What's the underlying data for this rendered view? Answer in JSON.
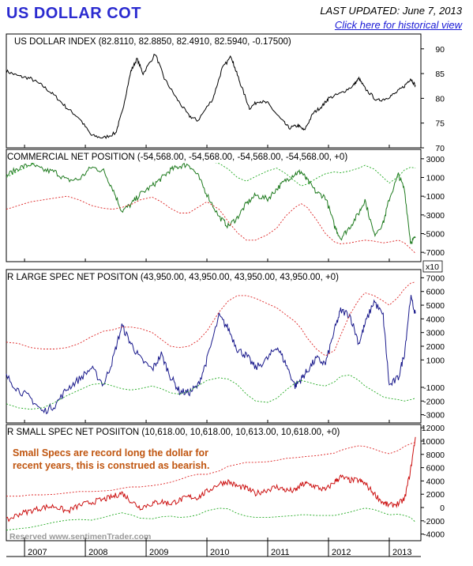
{
  "header": {
    "title": "US DOLLAR COT",
    "last_updated": "LAST UPDATED:  June 7, 2013",
    "historical_link": "Click here for historical view"
  },
  "footer": {
    "watermark": "Reserved   www.sentimenTrader.com"
  },
  "colors": {
    "index_line": "#000000",
    "commercial_line": "#1e7a1e",
    "large_spec_line": "#1a1a8c",
    "small_spec_line": "#cc1111",
    "upper_band": "#dd2222",
    "lower_band": "#22aa22",
    "title_blue": "#2b2bd0",
    "annotation": "#c0550f"
  },
  "chart_data": [
    {
      "type": "line",
      "title": "US DOLLAR INDEX (82.8110, 82.8850, 82.4910, 82.5940, -0.17500)",
      "ylim": [
        70,
        93
      ],
      "yticks": [
        "90",
        "85",
        "80",
        "75",
        "70"
      ],
      "ytick_values": [
        90,
        85,
        80,
        75,
        70
      ],
      "x": [
        2006.7,
        2006.9,
        2007.1,
        2007.3,
        2007.5,
        2007.7,
        2007.9,
        2008.1,
        2008.3,
        2008.5,
        2008.6,
        2008.75,
        2008.85,
        2008.95,
        2009.15,
        2009.3,
        2009.5,
        2009.7,
        2009.85,
        2010.1,
        2010.25,
        2010.4,
        2010.45,
        2010.55,
        2010.7,
        2010.85,
        2011.0,
        2011.2,
        2011.35,
        2011.5,
        2011.6,
        2011.75,
        2011.9,
        2012.0,
        2012.2,
        2012.4,
        2012.5,
        2012.6,
        2012.8,
        2012.95,
        2013.1,
        2013.25,
        2013.35,
        2013.43
      ],
      "series": [
        {
          "name": "",
          "values": [
            85.5,
            84.5,
            84.0,
            82.5,
            80.5,
            78.0,
            76.0,
            72.5,
            72.0,
            73.0,
            77.0,
            85.5,
            88.0,
            85.0,
            89.0,
            84.0,
            80.0,
            76.5,
            75.5,
            80.0,
            86.0,
            88.5,
            86.5,
            83.0,
            78.0,
            79.5,
            79.0,
            76.0,
            74.0,
            74.5,
            73.5,
            77.0,
            78.5,
            80.0,
            81.0,
            82.5,
            84.0,
            82.0,
            79.5,
            80.0,
            81.0,
            82.5,
            84.0,
            82.6
          ]
        }
      ]
    },
    {
      "type": "line",
      "title": "COMMERCIAL NET POSITION (-54,568.00, -54,568.00, -54,568.00, -54,568.00, +0)",
      "ylim": [
        -8000,
        4000
      ],
      "yticks": [
        "3000",
        "1000",
        "-1000",
        "-3000",
        "-5000",
        "-7000"
      ],
      "ytick_values": [
        3000,
        1000,
        -1000,
        -3000,
        -5000,
        -7000
      ],
      "unit_label": "x10",
      "x": [
        2006.7,
        2006.9,
        2007.1,
        2007.3,
        2007.5,
        2007.7,
        2007.9,
        2008.1,
        2008.3,
        2008.45,
        2008.6,
        2008.75,
        2008.9,
        2009.1,
        2009.25,
        2009.4,
        2009.55,
        2009.7,
        2009.85,
        2010.0,
        2010.2,
        2010.35,
        2010.5,
        2010.65,
        2010.8,
        2011.0,
        2011.15,
        2011.3,
        2011.45,
        2011.55,
        2011.65,
        2011.8,
        2011.95,
        2012.1,
        2012.2,
        2012.35,
        2012.5,
        2012.6,
        2012.75,
        2012.9,
        2013.0,
        2013.15,
        2013.25,
        2013.35,
        2013.43
      ],
      "series": [
        {
          "name": "",
          "values": [
            1200,
            2000,
            2400,
            1800,
            1600,
            700,
            800,
            2100,
            1700,
            -200,
            -2600,
            -1900,
            -800,
            100,
            900,
            1800,
            2200,
            2400,
            1200,
            -800,
            -3200,
            -4200,
            -3300,
            -1800,
            -900,
            -1300,
            -200,
            700,
            1400,
            1600,
            700,
            -600,
            -1100,
            -4200,
            -5500,
            -4300,
            -2800,
            -1400,
            -5100,
            -3900,
            -1300,
            1300,
            -300,
            -5900,
            -5457
          ]
        },
        {
          "name": "",
          "values": [
            -2400,
            -2000,
            -1600,
            -1400,
            -1200,
            -1000,
            -1400,
            -2000,
            -2300,
            -2400,
            -2200,
            -1900,
            -1400,
            -1100,
            -1600,
            -2300,
            -2800,
            -2800,
            -2200,
            -1600,
            -2400,
            -3700,
            -4900,
            -5700,
            -5700,
            -5100,
            -4400,
            -3100,
            -2200,
            -1800,
            -2200,
            -3500,
            -5000,
            -5900,
            -6100,
            -6000,
            -5800,
            -5700,
            -5800,
            -6000,
            -5900,
            -5700,
            -6000,
            -6600,
            -7100
          ]
        },
        {
          "name": "",
          "values": [
            1000,
            1700,
            2300,
            3100,
            3200,
            3300,
            3200,
            3100,
            3100,
            3200,
            3300,
            3300,
            3200,
            3100,
            3200,
            3300,
            3300,
            3200,
            3000,
            2800,
            2500,
            1900,
            1000,
            600,
            1100,
            1700,
            2000,
            1400,
            600,
            100,
            300,
            900,
            1400,
            1600,
            1500,
            1700,
            2000,
            2300,
            1900,
            1000,
            400,
            1100,
            1800,
            2100,
            2000
          ]
        }
      ]
    },
    {
      "type": "line",
      "title": "R LARGE SPEC NET POSITON (43,950.00, 43,950.00, 43,950.00, 43,950.00, +0)",
      "ylim": [
        -3600,
        7600
      ],
      "yticks": [
        "7000",
        "6000",
        "5000",
        "4000",
        "3000",
        "2000",
        "1000",
        "-1000",
        "-2000",
        "-3000"
      ],
      "ytick_values": [
        7000,
        6000,
        5000,
        4000,
        3000,
        2000,
        1000,
        -1000,
        -2000,
        -3000
      ],
      "x": [
        2006.7,
        2006.9,
        2007.1,
        2007.3,
        2007.5,
        2007.7,
        2007.9,
        2008.1,
        2008.3,
        2008.45,
        2008.6,
        2008.75,
        2008.9,
        2009.1,
        2009.25,
        2009.4,
        2009.55,
        2009.7,
        2009.85,
        2010.0,
        2010.2,
        2010.35,
        2010.5,
        2010.65,
        2010.8,
        2011.0,
        2011.15,
        2011.3,
        2011.45,
        2011.55,
        2011.65,
        2011.8,
        2011.95,
        2012.1,
        2012.2,
        2012.35,
        2012.5,
        2012.6,
        2012.75,
        2012.9,
        2013.0,
        2013.15,
        2013.25,
        2013.35,
        2013.43
      ],
      "series": [
        {
          "name": "",
          "values": [
            -200,
            -1200,
            -1800,
            -2800,
            -2300,
            -1100,
            -400,
            400,
            -800,
            1000,
            3500,
            2200,
            1100,
            300,
            1400,
            -200,
            -1300,
            -1400,
            -900,
            1000,
            4200,
            3300,
            1800,
            1300,
            400,
            1100,
            2000,
            700,
            -900,
            -400,
            200,
            1100,
            700,
            3200,
            4600,
            4300,
            2200,
            3600,
            5300,
            4200,
            -900,
            -300,
            1500,
            5600,
            4395
          ]
        },
        {
          "name": "",
          "values": [
            2300,
            2200,
            1900,
            1800,
            1800,
            1900,
            2200,
            2700,
            3100,
            3200,
            3400,
            3400,
            3300,
            3000,
            2500,
            2000,
            1900,
            2000,
            2400,
            3100,
            4500,
            5300,
            5700,
            5700,
            5500,
            5100,
            4800,
            4300,
            3800,
            3300,
            2600,
            1800,
            1300,
            1700,
            2800,
            4300,
            5400,
            5900,
            5700,
            5300,
            5000,
            5600,
            6200,
            6600,
            6700
          ]
        },
        {
          "name": "",
          "values": [
            -2200,
            -2500,
            -2600,
            -2500,
            -2100,
            -1600,
            -1200,
            -800,
            -700,
            -900,
            -1100,
            -1200,
            -1100,
            -900,
            -1100,
            -1400,
            -1500,
            -1300,
            -900,
            -500,
            -300,
            -400,
            -800,
            -1500,
            -2000,
            -2100,
            -1800,
            -1200,
            -700,
            -500,
            -600,
            -800,
            -900,
            -600,
            -200,
            -100,
            -500,
            -900,
            -1300,
            -1700,
            -1800,
            -1900,
            -2000,
            -1900,
            -1800
          ]
        }
      ]
    },
    {
      "type": "line",
      "title": "R SMALL SPEC NET POSIITON (10,618.00, 10,618.00, 10,613.00, 10,618.00, +0)",
      "ylim": [
        -5000,
        12500
      ],
      "yticks": [
        "12000",
        "10000",
        "8000",
        "6000",
        "4000",
        "2000",
        "0",
        "-2000",
        "-4000"
      ],
      "ytick_values": [
        12000,
        10000,
        8000,
        6000,
        4000,
        2000,
        0,
        -2000,
        -4000
      ],
      "annotation": [
        "Small Specs are record long the dollar for",
        "recent years, this is construed as bearish."
      ],
      "x": [
        2006.7,
        2006.9,
        2007.1,
        2007.3,
        2007.5,
        2007.7,
        2007.9,
        2008.1,
        2008.3,
        2008.45,
        2008.6,
        2008.75,
        2008.9,
        2009.1,
        2009.25,
        2009.4,
        2009.55,
        2009.7,
        2009.85,
        2010.0,
        2010.2,
        2010.35,
        2010.5,
        2010.65,
        2010.8,
        2011.0,
        2011.15,
        2011.3,
        2011.45,
        2011.55,
        2011.65,
        2011.8,
        2011.95,
        2012.1,
        2012.2,
        2012.35,
        2012.5,
        2012.6,
        2012.75,
        2012.9,
        2013.0,
        2013.15,
        2013.25,
        2013.35,
        2013.43
      ],
      "series": [
        {
          "name": "",
          "values": [
            -2000,
            -1000,
            -500,
            0,
            200,
            -600,
            300,
            800,
            1200,
            1600,
            2200,
            1000,
            0,
            600,
            900,
            600,
            1100,
            1600,
            1500,
            2400,
            3600,
            3900,
            3200,
            2900,
            2100,
            2700,
            3100,
            2600,
            2500,
            3400,
            3600,
            3100,
            2600,
            3900,
            4600,
            4100,
            4100,
            3600,
            2100,
            700,
            300,
            600,
            1200,
            5600,
            10618
          ]
        },
        {
          "name": "",
          "values": [
            1700,
            1700,
            1900,
            1900,
            2000,
            2200,
            2400,
            2400,
            2500,
            2600,
            2900,
            3100,
            3100,
            3300,
            3500,
            3800,
            4200,
            4700,
            5000,
            5000,
            5500,
            6200,
            6500,
            6800,
            6800,
            6900,
            7100,
            7400,
            7500,
            7600,
            7700,
            7800,
            8000,
            8200,
            8600,
            9000,
            9300,
            9200,
            8800,
            8300,
            8100,
            8600,
            9200,
            9600,
            9800
          ]
        },
        {
          "name": "",
          "values": [
            -3400,
            -3200,
            -3000,
            -2600,
            -2200,
            -1900,
            -1800,
            -1900,
            -1500,
            -1100,
            -800,
            -1100,
            -1600,
            -1700,
            -1400,
            -1300,
            -1500,
            -1400,
            -1100,
            -500,
            -100,
            -200,
            -900,
            -1300,
            -1500,
            -1500,
            -1400,
            -1300,
            -1200,
            -1100,
            -1100,
            -1200,
            -1200,
            -1200,
            -1000,
            -700,
            -300,
            -100,
            -300,
            -800,
            -1100,
            -1000,
            -1200,
            -1500,
            -2200
          ]
        }
      ]
    }
  ],
  "x_axis": {
    "labels": [
      "2007",
      "2008",
      "2009",
      "2010",
      "2011",
      "2012",
      "2013"
    ],
    "values": [
      2007,
      2008,
      2009,
      2010,
      2011,
      2012,
      2013
    ]
  }
}
